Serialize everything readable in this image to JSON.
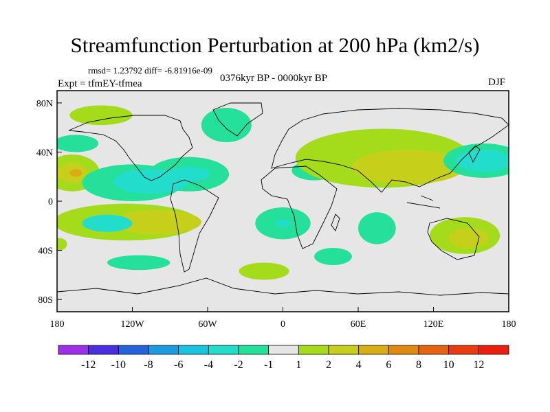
{
  "title": "Streamfunction Perturbation at 200 hPa (km2/s)",
  "stats_line": "rmsd= 1.23792 diff= -6.81916e-09",
  "subtitle": "0376kyr BP - 0000kyr BP",
  "experiment": "Expt = tfmEY-tfmea",
  "season": "DJF",
  "chart_data": {
    "type": "heatmap",
    "projection": "equirectangular",
    "x_ticks": [
      "180",
      "120W",
      "60W",
      "0",
      "60E",
      "120E",
      "180"
    ],
    "y_ticks": [
      "80N",
      "40N",
      "0",
      "40S",
      "80S"
    ],
    "xlim": [
      -180,
      180
    ],
    "ylim": [
      -90,
      90
    ],
    "colorbar": {
      "labels": [
        "-12",
        "-10",
        "-8",
        "-6",
        "-4",
        "-2",
        "-1",
        "1",
        "2",
        "4",
        "6",
        "8",
        "10",
        "12"
      ],
      "colors": [
        "#9c2fe8",
        "#4a2ee0",
        "#2662dc",
        "#1c9ce0",
        "#19c4de",
        "#22dccc",
        "#25e09a",
        "#e6e6e6",
        "#a4dc1c",
        "#c6d01a",
        "#d8ae14",
        "#de8a10",
        "#e46210",
        "#e83c10",
        "#ee1e0e"
      ]
    },
    "anomalies": [
      {
        "lon": -145,
        "lat": 70,
        "rx": 25,
        "ry": 8,
        "level": 8
      },
      {
        "lon": -45,
        "lat": 62,
        "rx": 20,
        "ry": 14,
        "level": 6
      },
      {
        "lon": -165,
        "lat": 47,
        "rx": 18,
        "ry": 7,
        "level": 6
      },
      {
        "lon": -168,
        "lat": 23,
        "rx": 22,
        "ry": 15,
        "level": 8
      },
      {
        "lon": -168,
        "lat": 23,
        "rx": 12,
        "ry": 8,
        "level": 9
      },
      {
        "lon": -165,
        "lat": 23,
        "rx": 5,
        "ry": 3,
        "level": 10
      },
      {
        "lon": -120,
        "lat": 15,
        "rx": 40,
        "ry": 15,
        "level": 6
      },
      {
        "lon": -75,
        "lat": 22,
        "rx": 32,
        "ry": 14,
        "level": 6
      },
      {
        "lon": -105,
        "lat": 16,
        "rx": 30,
        "ry": 10,
        "level": 5
      },
      {
        "lon": -75,
        "lat": 22,
        "rx": 17,
        "ry": 6,
        "level": 5
      },
      {
        "lon": 25,
        "lat": 25,
        "rx": 18,
        "ry": 8,
        "level": 6
      },
      {
        "lon": 80,
        "lat": 35,
        "rx": 70,
        "ry": 24,
        "level": 8
      },
      {
        "lon": 100,
        "lat": 28,
        "rx": 45,
        "ry": 14,
        "level": 9
      },
      {
        "lon": 160,
        "lat": 33,
        "rx": 32,
        "ry": 14,
        "level": 6
      },
      {
        "lon": 160,
        "lat": 33,
        "rx": 22,
        "ry": 9,
        "level": 5
      },
      {
        "lon": -125,
        "lat": -17,
        "rx": 58,
        "ry": 15,
        "level": 8
      },
      {
        "lon": -100,
        "lat": -17,
        "rx": 35,
        "ry": 10,
        "level": 9
      },
      {
        "lon": -140,
        "lat": -18,
        "rx": 20,
        "ry": 7,
        "level": 5
      },
      {
        "lon": 0,
        "lat": -18,
        "rx": 22,
        "ry": 13,
        "level": 6
      },
      {
        "lon": 0,
        "lat": -18,
        "rx": 6,
        "ry": 3,
        "level": 5
      },
      {
        "lon": 75,
        "lat": -22,
        "rx": 15,
        "ry": 13,
        "level": 6
      },
      {
        "lon": 145,
        "lat": -28,
        "rx": 28,
        "ry": 15,
        "level": 8
      },
      {
        "lon": 148,
        "lat": -30,
        "rx": 16,
        "ry": 8,
        "level": 9
      },
      {
        "lon": -178,
        "lat": -35,
        "rx": 6,
        "ry": 5,
        "level": 8
      },
      {
        "lon": -115,
        "lat": -50,
        "rx": 25,
        "ry": 6,
        "level": 6
      },
      {
        "lon": -15,
        "lat": -57,
        "rx": 20,
        "ry": 7,
        "level": 8
      },
      {
        "lon": 40,
        "lat": -45,
        "rx": 15,
        "ry": 7,
        "level": 6
      }
    ]
  }
}
